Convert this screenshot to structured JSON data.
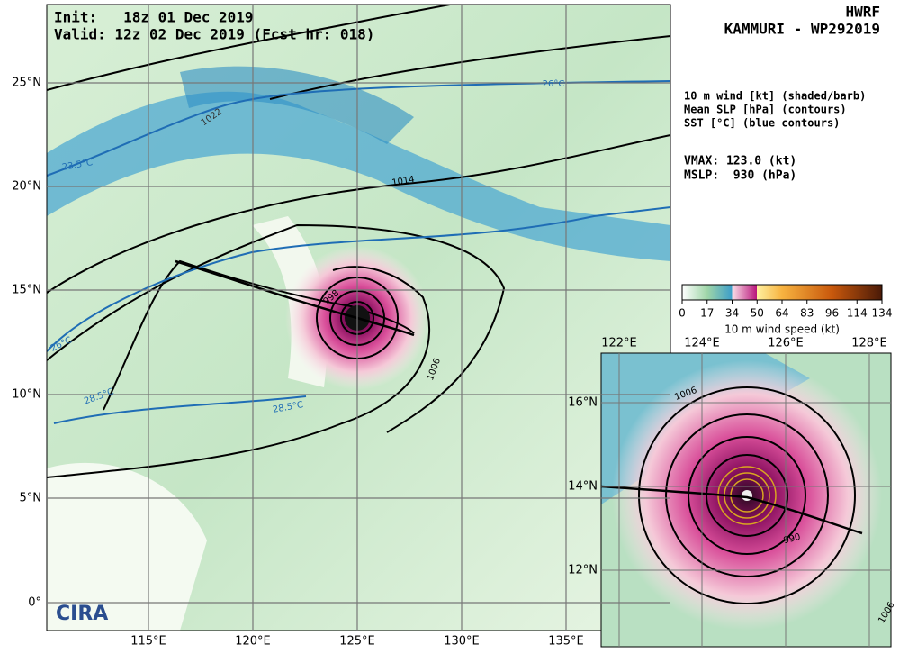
{
  "header": {
    "init": "Init:   18z 01 Dec 2019",
    "valid": "Valid: 12z 02 Dec 2019 (Fcst hr: 018)",
    "model": "HWRF",
    "storm": "KAMMURI - WP292019"
  },
  "legend": {
    "lines": [
      "10 m wind [kt] (shaded/barb)",
      "Mean SLP [hPa] (contours)",
      "SST [°C] (blue contours)"
    ]
  },
  "stats": [
    "VMAX: 123.0 (kt)",
    "MSLP:  930 (hPa)"
  ],
  "colorbar": {
    "ticks": [
      "0",
      "17",
      "34",
      "50",
      "64",
      "83",
      "96",
      "114",
      "134"
    ],
    "label": "10 m wind speed (kt)"
  },
  "main_map": {
    "lon_labels": [
      "115°E",
      "120°E",
      "125°E",
      "130°E",
      "135°E"
    ],
    "lat_labels": [
      "25°N",
      "20°N",
      "15°N",
      "10°N",
      "5°N",
      "0°"
    ],
    "contour_labels": [
      "1022",
      "1014",
      "1006",
      "998",
      "26°C",
      "23.5°C",
      "26°C",
      "28.5°C",
      "28.5°C"
    ],
    "logo": "CIRA"
  },
  "inset_map": {
    "lon_labels": [
      "122°E",
      "124°E",
      "126°E",
      "128°E"
    ],
    "lat_labels": [
      "16°N",
      "14°N",
      "12°N"
    ],
    "contour_labels": [
      "1006",
      "990",
      "1006"
    ]
  }
}
